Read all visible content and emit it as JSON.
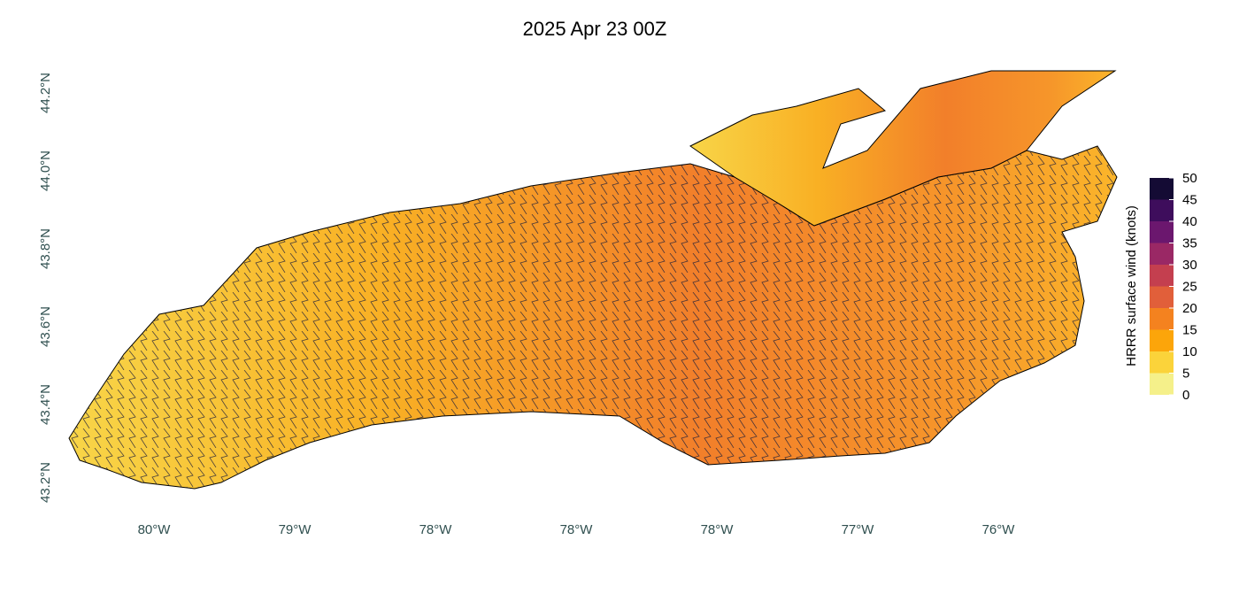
{
  "title": "2025 Apr 23 00Z",
  "x_labels": [
    "80°W",
    "79°W",
    "78°W",
    "78°W",
    "78°W",
    "77°W",
    "76°W"
  ],
  "y_labels": [
    "43.2°N",
    "43.4°N",
    "43.6°N",
    "43.8°N",
    "44.0°N",
    "44.2°N"
  ],
  "colorbar": {
    "title": "HRRR surface wind (knots)",
    "lim": [
      0,
      50
    ],
    "ticks": [
      0,
      5,
      10,
      15,
      20,
      25,
      30,
      35,
      40,
      45,
      50
    ],
    "colors": [
      "#f5f08a",
      "#fbd33a",
      "#fca50a",
      "#f4821f",
      "#e15f3a",
      "#c43f4f",
      "#9a2865",
      "#6b176e",
      "#3e0d5c",
      "#140b34"
    ]
  }
}
